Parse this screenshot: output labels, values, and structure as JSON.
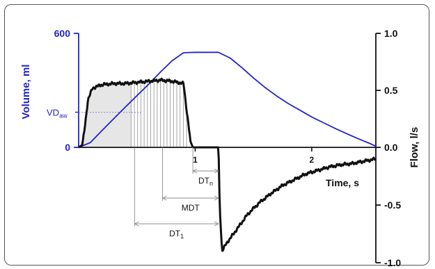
{
  "chart_data": {
    "type": "line",
    "left_axis": {
      "label": "Volume, ml",
      "ticks": [
        {
          "value": 0,
          "label": "0"
        },
        {
          "value": 600,
          "label": "600"
        }
      ],
      "range": [
        0,
        600
      ],
      "color": "#2323c8"
    },
    "right_axis": {
      "label": "Flow, l/s",
      "ticks": [
        {
          "value": 1.0,
          "label": "1.0"
        },
        {
          "value": 0.5,
          "label": "0.5"
        },
        {
          "value": 0.0,
          "label": "0.0"
        },
        {
          "value": -0.5,
          "label": "-0.5"
        },
        {
          "value": -1.0,
          "label": "-1.0"
        }
      ],
      "range": [
        -1.0,
        1.0
      ],
      "color": "#111111"
    },
    "x_axis": {
      "label": "Time, s",
      "ticks": [
        {
          "value": 1,
          "label": "1"
        },
        {
          "value": 2,
          "label": "2"
        }
      ],
      "range": [
        0,
        2.55
      ]
    },
    "series": [
      {
        "key": "volume",
        "color": "#2323c8",
        "axis": "left",
        "points": [
          [
            0.0,
            0
          ],
          [
            0.1,
            25
          ],
          [
            0.2,
            88
          ],
          [
            0.3,
            150
          ],
          [
            0.4,
            212
          ],
          [
            0.5,
            272
          ],
          [
            0.6,
            332
          ],
          [
            0.7,
            395
          ],
          [
            0.8,
            455
          ],
          [
            0.9,
            498
          ],
          [
            1.0,
            500
          ],
          [
            1.2,
            500
          ],
          [
            1.3,
            470
          ],
          [
            1.4,
            420
          ],
          [
            1.5,
            365
          ],
          [
            1.6,
            315
          ],
          [
            1.7,
            270
          ],
          [
            1.8,
            230
          ],
          [
            1.9,
            195
          ],
          [
            2.0,
            160
          ],
          [
            2.1,
            130
          ],
          [
            2.2,
            100
          ],
          [
            2.3,
            72
          ],
          [
            2.4,
            45
          ],
          [
            2.5,
            20
          ],
          [
            2.55,
            6
          ]
        ]
      },
      {
        "key": "flow",
        "color": "#111111",
        "axis": "right",
        "points": [
          [
            0.0,
            0.0
          ],
          [
            0.03,
            0.02
          ],
          [
            0.05,
            0.15
          ],
          [
            0.08,
            0.42
          ],
          [
            0.12,
            0.52
          ],
          [
            0.2,
            0.55
          ],
          [
            0.3,
            0.56
          ],
          [
            0.4,
            0.56
          ],
          [
            0.5,
            0.57
          ],
          [
            0.6,
            0.58
          ],
          [
            0.7,
            0.59
          ],
          [
            0.8,
            0.58
          ],
          [
            0.9,
            0.56
          ],
          [
            0.93,
            0.3
          ],
          [
            0.96,
            0.05
          ],
          [
            0.98,
            0.0
          ],
          [
            1.2,
            0.0
          ],
          [
            1.21,
            -0.5
          ],
          [
            1.23,
            -0.9
          ],
          [
            1.27,
            -0.83
          ],
          [
            1.35,
            -0.72
          ],
          [
            1.45,
            -0.58
          ],
          [
            1.55,
            -0.48
          ],
          [
            1.65,
            -0.4
          ],
          [
            1.75,
            -0.33
          ],
          [
            1.85,
            -0.28
          ],
          [
            1.95,
            -0.23
          ],
          [
            2.05,
            -0.2
          ],
          [
            2.15,
            -0.17
          ],
          [
            2.25,
            -0.15
          ],
          [
            2.35,
            -0.14
          ],
          [
            2.45,
            -0.12
          ],
          [
            2.55,
            -0.1
          ]
        ]
      }
    ],
    "annotations": {
      "vdaw": {
        "main": "VD",
        "sub": "aw",
        "volume": 185
      },
      "dimension_lines": [
        {
          "main": "DT",
          "sub": "n",
          "start": 0.98,
          "end": 1.2
        },
        {
          "main": "MDT",
          "sub": "",
          "start": 0.72,
          "end": 1.2
        },
        {
          "main": "DT",
          "sub": "1",
          "start": 0.48,
          "end": 1.2
        }
      ],
      "shaded_until": 0.45,
      "hatch_until": 0.93
    }
  }
}
